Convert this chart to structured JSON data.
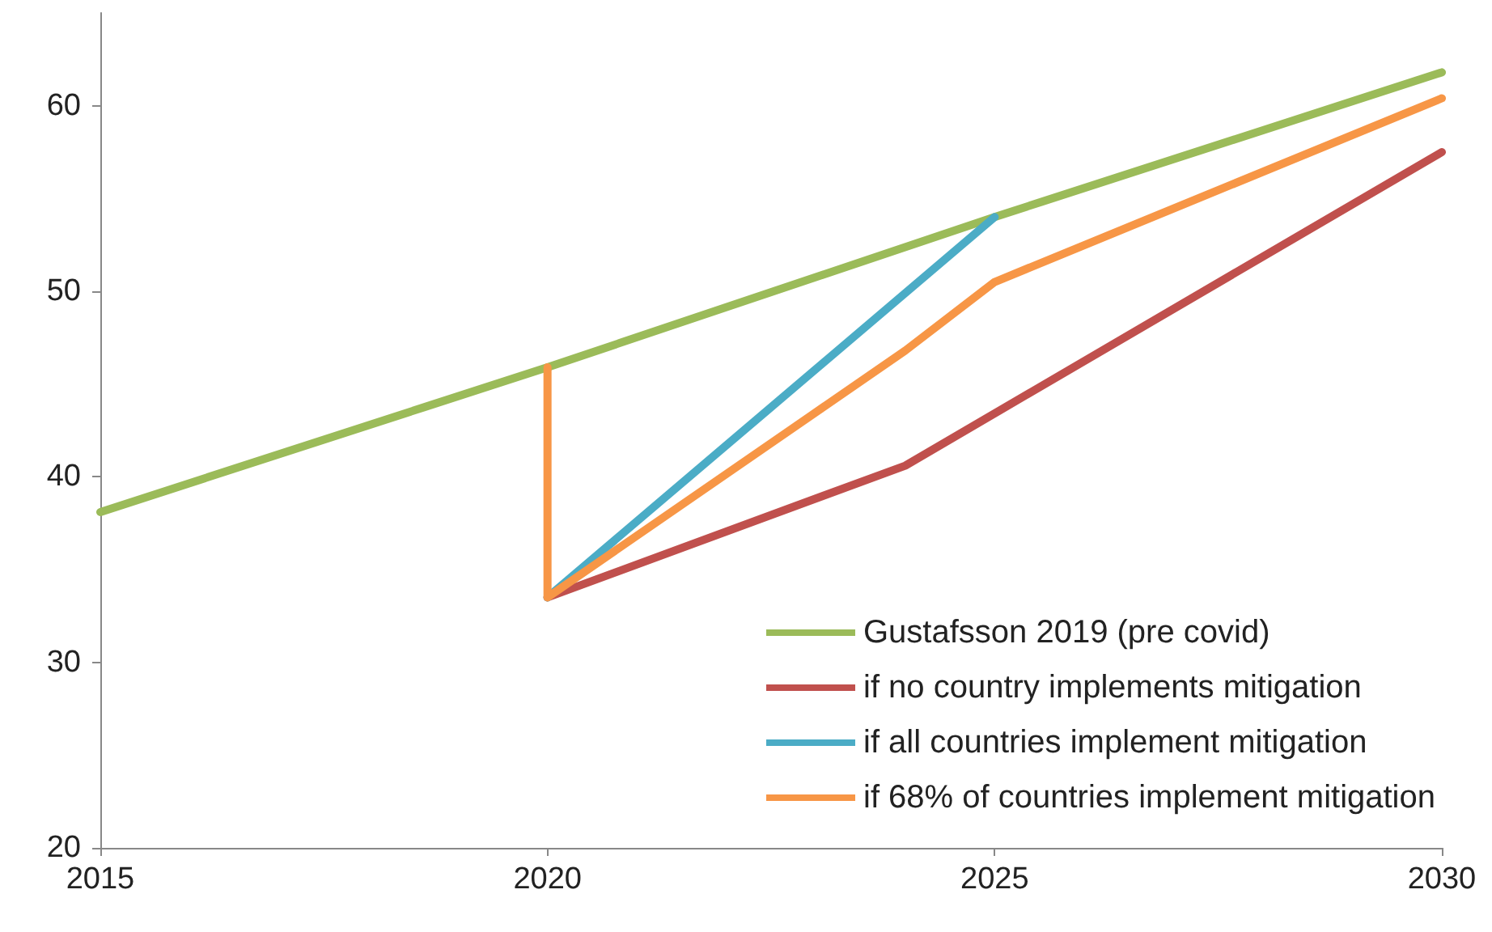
{
  "chart_data": {
    "type": "line",
    "xlim": [
      2015,
      2030
    ],
    "xticks": [
      2015,
      2020,
      2025,
      2030
    ],
    "ylim": [
      20,
      65
    ],
    "yticks": [
      20,
      30,
      40,
      50,
      60
    ],
    "grid": false,
    "legend": "bottom right",
    "marker": "none",
    "line_style": "solid",
    "series": [
      {
        "name": "Gustafsson 2019 (pre covid)",
        "color": "#9bbb59",
        "x": [
          2015,
          2020,
          2025,
          2030
        ],
        "values": [
          38.1,
          45.9,
          54,
          61.8
        ]
      },
      {
        "name": "if no country implements mitigation",
        "color": "#c0504d",
        "x": [
          2020,
          2024,
          2030
        ],
        "values": [
          33.5,
          40.6,
          57.5
        ]
      },
      {
        "name": "if all countries implement mitigation",
        "color": "#4bacc6",
        "x": [
          2020,
          2025
        ],
        "values": [
          33.5,
          54
        ]
      },
      {
        "name": "if 68% of countries implement mitigation",
        "color": "#f79646",
        "x": [
          2020,
          2020,
          2024,
          2025,
          2030
        ],
        "values": [
          45.9,
          33.5,
          46.8,
          50.5,
          60.4
        ]
      }
    ]
  }
}
